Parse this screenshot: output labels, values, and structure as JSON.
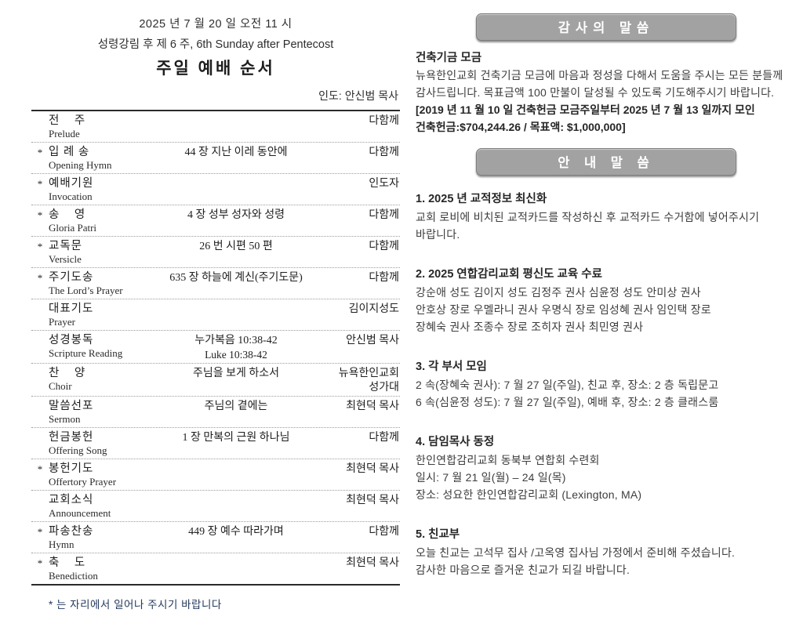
{
  "colors": {
    "badge_background": "#a2a2a2",
    "badge_text": "#ffffff",
    "footnote_text": "#24395e",
    "body_text": "#3a3a3a",
    "table_rule": "#2a2a2a"
  },
  "left": {
    "header": {
      "date_line": "2025 년 7 월 20 일 오전 11 시",
      "season_line": "성령강림 후 제 6 주, 6th Sunday after Pentecost",
      "title": "주일 예배 순서",
      "leader": "인도: 안신범 목사"
    },
    "order": [
      {
        "star": "",
        "title_ko": "전    주",
        "title_en": "Prelude",
        "center": "",
        "center2": "",
        "right": "다함께",
        "right2": ""
      },
      {
        "star": "*",
        "title_ko": "입 례 송",
        "title_en": "Opening Hymn",
        "center": "44 장 지난 이레 동안에",
        "center2": "",
        "right": "다함께",
        "right2": ""
      },
      {
        "star": "*",
        "title_ko": "예배기원",
        "title_en": "Invocation",
        "center": "",
        "center2": "",
        "right": "인도자",
        "right2": ""
      },
      {
        "star": "*",
        "title_ko": "송    영",
        "title_en": "Gloria Patri",
        "center": "4 장 성부 성자와 성령",
        "center2": "",
        "right": "다함께",
        "right2": ""
      },
      {
        "star": "*",
        "title_ko": "교독문",
        "title_en": "Versicle",
        "center": "26 번 시편 50 편",
        "center2": "",
        "right": "다함께",
        "right2": ""
      },
      {
        "star": "*",
        "title_ko": "주기도송",
        "title_en": "The Lord’s Prayer",
        "center": "635 장 하늘에 계신(주기도문)",
        "center2": "",
        "right": "다함께",
        "right2": ""
      },
      {
        "star": "",
        "title_ko": "대표기도",
        "title_en": "Prayer",
        "center": "",
        "center2": "",
        "right": "김이지성도",
        "right2": ""
      },
      {
        "star": "",
        "title_ko": "성경봉독",
        "title_en": "Scripture Reading",
        "center": "누가복음 10:38-42",
        "center2": "Luke 10:38-42",
        "right": "안신범 목사",
        "right2": ""
      },
      {
        "star": "",
        "title_ko": "찬    양",
        "title_en": "Choir",
        "center": "주님을 보게 하소서",
        "center2": "",
        "right": "뉴욕한인교회",
        "right2": "성가대"
      },
      {
        "star": "",
        "title_ko": "말씀선포",
        "title_en": "Sermon",
        "center": "주님의 곁에는",
        "center2": "",
        "right": "최현덕 목사",
        "right2": ""
      },
      {
        "star": "",
        "title_ko": "헌금봉헌",
        "title_en": "Offering Song",
        "center": "1 장 만복의 근원 하나님",
        "center2": "",
        "right": "다함께",
        "right2": ""
      },
      {
        "star": "*",
        "title_ko": "봉헌기도",
        "title_en": "Offertory Prayer",
        "center": "",
        "center2": "",
        "right": "최현덕 목사",
        "right2": ""
      },
      {
        "star": "",
        "title_ko": "교회소식",
        "title_en": "Announcement",
        "center": "",
        "center2": "",
        "right": "최현덕 목사",
        "right2": ""
      },
      {
        "star": "*",
        "title_ko": "파송찬송",
        "title_en": "Hymn",
        "center": "449 장 예수 따라가며",
        "center2": "",
        "right": "다함께",
        "right2": ""
      },
      {
        "star": "*",
        "title_ko": "축    도",
        "title_en": "Benediction",
        "center": "",
        "center2": "",
        "right": "최현덕 목사",
        "right2": ""
      }
    ],
    "footnote": "* 는 자리에서 일어나 주시기 바랍니다"
  },
  "right": {
    "thanks_badge_label": "감사의 말씀",
    "thanks": {
      "title": "건축기금 모금",
      "lines": [
        "뉴욕한인교회 건축기금 모금에 마음과 정성을 다해서 도움을 주시는 모든 분들께",
        "감사드립니다. 목표금액 100 만불이 달성될 수 있도록 기도해주시기 바랍니다."
      ],
      "bold_lines": [
        "[2019 년 11 월 10 일 건축헌금 모금주일부터 2025 년 7 월 13 일까지 모인",
        "건축헌금:$704,244.26 / 목표액: $1,000,000]"
      ]
    },
    "info_badge_label": "안 내 말 씀",
    "sections": [
      {
        "title": "1. 2025 년 교적정보 최신화",
        "lines": [
          "교회 로비에 비치된 교적카드를 작성하신 후 교적카드 수거함에 넣어주시기",
          "바랍니다."
        ]
      },
      {
        "title": "2. 2025 연합감리교회 평신도 교육 수료",
        "lines": [
          "강순애 성도  김이지 성도  김정주 권사  심윤정 성도  안미상 권사",
          "안호상 장로  우멜라니 권사  우명식 장로  임성혜 권사  임인택 장로",
          "장혜숙 권사  조종수 장로  조히자 권사  최민영 권사"
        ]
      },
      {
        "title": "3. 각 부서 모임",
        "lines": [
          "2 속(장혜숙 권사): 7 월 27 일(주일), 친교 후, 장소: 2 층 독립문고",
          "6 속(심윤정 성도): 7 월 27 일(주일), 예배 후, 장소: 2 층 클래스룸"
        ]
      },
      {
        "title": "4. 담임목사 동정",
        "lines": [
          "한인연합감리교회 동북부 연합회 수련회",
          "일시: 7 월 21 일(월) – 24 일(목)",
          "장소: 성요한 한인연합감리교회 (Lexington, MA)"
        ]
      },
      {
        "title": "5. 친교부",
        "lines": [
          "오늘 친교는 고석무 집사 /고옥영 집사님 가정에서 준비해 주셨습니다.",
          "감사한 마음으로 즐거운 친교가 되길 바랍니다."
        ]
      }
    ]
  }
}
